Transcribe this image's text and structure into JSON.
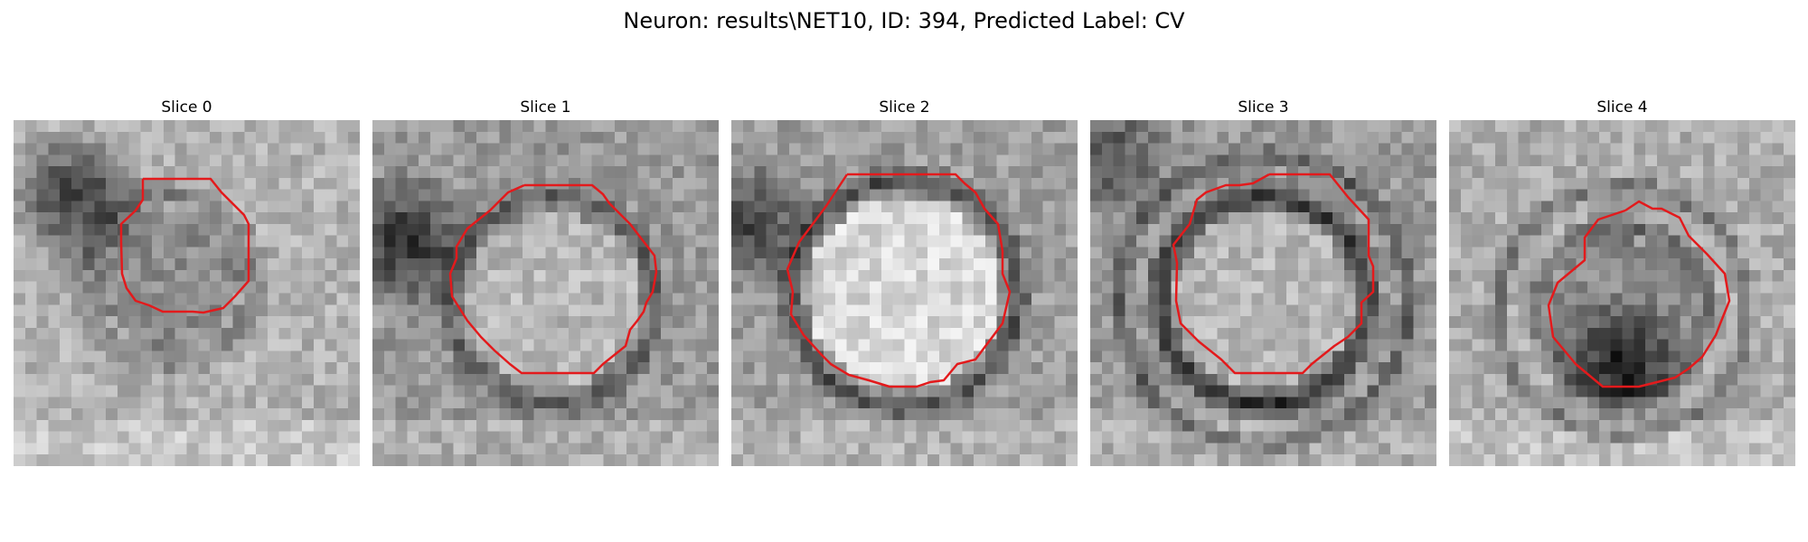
{
  "figure": {
    "title": "Neuron: results\\NET10, ID: 394, Predicted Label: CV"
  },
  "slices": [
    {
      "label": "Slice 0"
    },
    {
      "label": "Slice 1"
    },
    {
      "label": "Slice 2"
    },
    {
      "label": "Slice 3"
    },
    {
      "label": "Slice 4"
    }
  ],
  "colors": {
    "contour": "#e31a1c",
    "background": "#ffffff"
  }
}
